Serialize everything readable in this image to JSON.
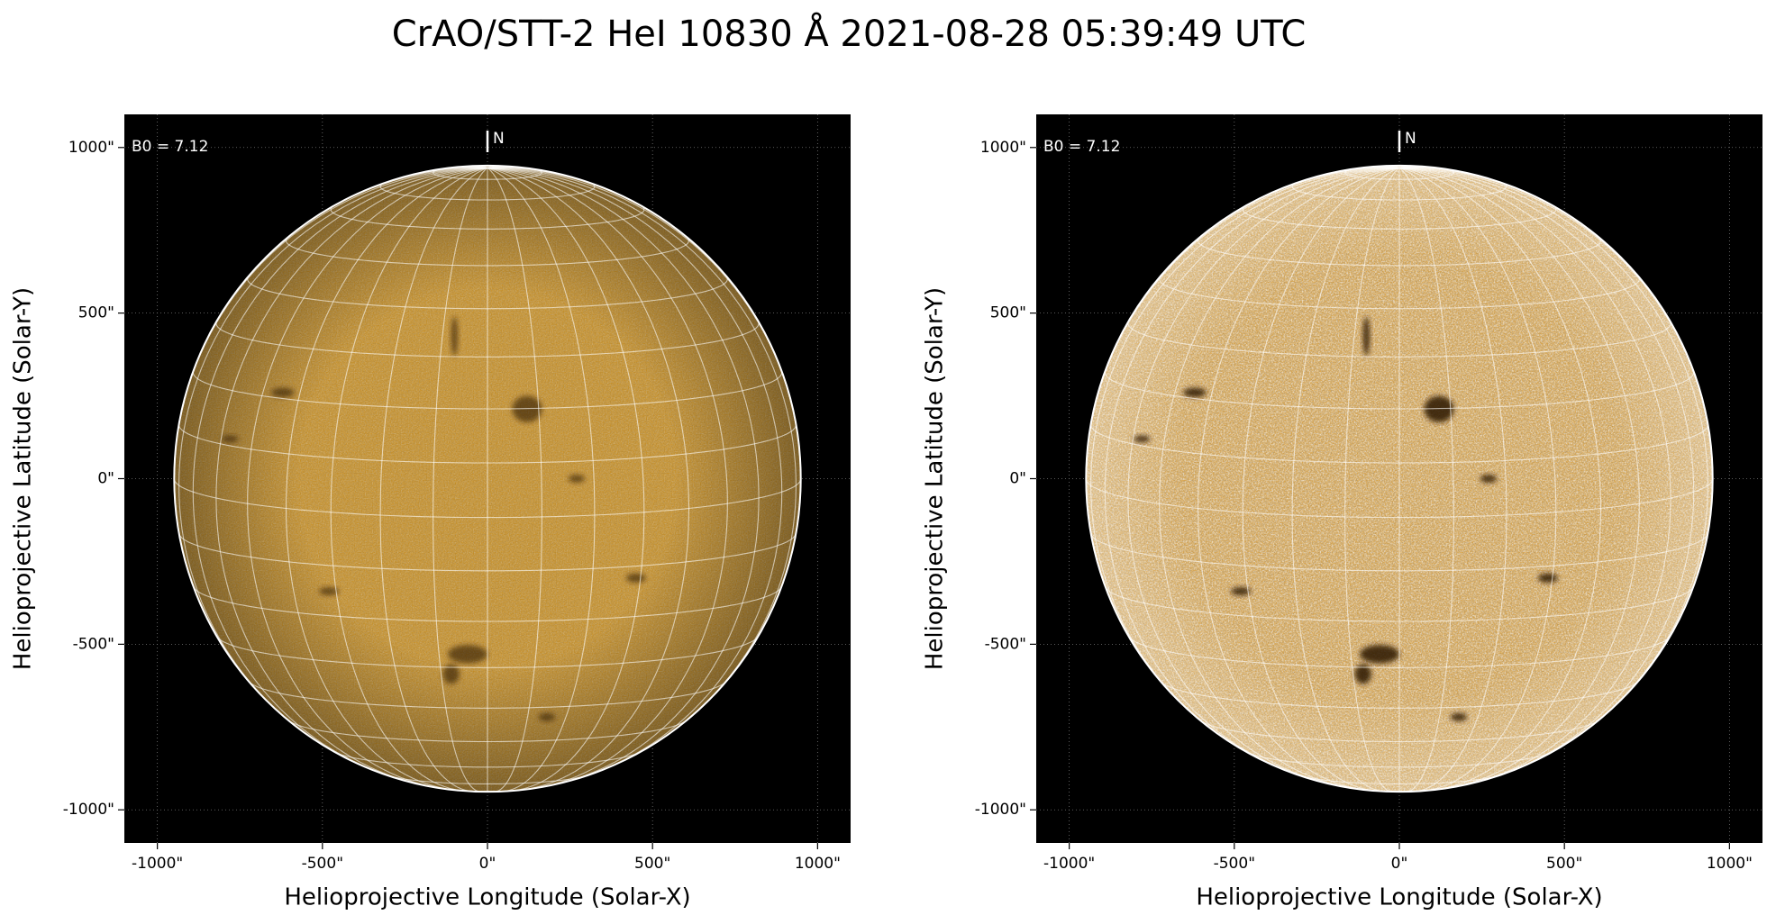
{
  "title": "CrAO/STT-2 HeI 10830 Å 2021-08-28 05:39:49 UTC",
  "chart_data": [
    {
      "type": "image",
      "xlabel": "Helioprojective Longitude (Solar-X)",
      "ylabel": "Helioprojective Latitude (Solar-Y)",
      "xlim": [
        -1100,
        1100
      ],
      "ylim": [
        -1100,
        1100
      ],
      "xticks": [
        {
          "value": -1000,
          "label": "-1000\""
        },
        {
          "value": -500,
          "label": "-500\""
        },
        {
          "value": 0,
          "label": "0\""
        },
        {
          "value": 500,
          "label": "500\""
        },
        {
          "value": 1000,
          "label": "1000\""
        }
      ],
      "yticks": [
        {
          "value": -1000,
          "label": "-1000\""
        },
        {
          "value": -500,
          "label": "-500\""
        },
        {
          "value": 0,
          "label": "0\""
        },
        {
          "value": 500,
          "label": "500\""
        },
        {
          "value": 1000,
          "label": "1000\""
        }
      ],
      "grid": true,
      "disk_radius": 949,
      "color": "#c98a12",
      "annotation": {
        "value": 7.12,
        "label": "B0 = 7.12"
      },
      "north_label": "N",
      "coord_grid_spacing": 10
    },
    {
      "type": "image",
      "xlabel": "Helioprojective Longitude (Solar-X)",
      "ylabel": "Helioprojective Latitude (Solar-Y)",
      "xlim": [
        -1100,
        1100
      ],
      "ylim": [
        -1100,
        1100
      ],
      "xticks": [
        {
          "value": -1000,
          "label": "-1000\""
        },
        {
          "value": -500,
          "label": "-500\""
        },
        {
          "value": 0,
          "label": "0\""
        },
        {
          "value": 500,
          "label": "500\""
        },
        {
          "value": 1000,
          "label": "1000\""
        }
      ],
      "yticks": [
        {
          "value": -1000,
          "label": "-1000\""
        },
        {
          "value": -500,
          "label": "-500\""
        },
        {
          "value": 0,
          "label": "0\""
        },
        {
          "value": 500,
          "label": "500\""
        },
        {
          "value": 1000,
          "label": "1000\""
        }
      ],
      "grid": true,
      "disk_radius": 949,
      "color": "#e39d26",
      "annotation": {
        "value": 7.12,
        "label": "B0 = 7.12"
      },
      "north_label": "N",
      "coord_grid_spacing": 10
    }
  ]
}
